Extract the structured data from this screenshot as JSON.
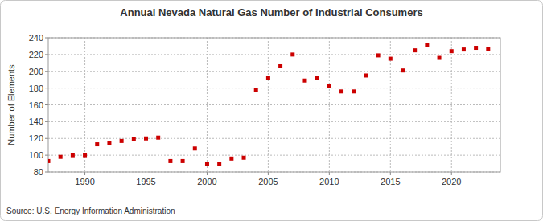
{
  "chart_data": {
    "type": "scatter",
    "title": "Annual Nevada Natural Gas Number of Industrial Consumers",
    "y_label": "Number of Elements",
    "source": "Source: U.S. Energy Information Administration",
    "x": [
      1987,
      1988,
      1989,
      1990,
      1991,
      1992,
      1993,
      1994,
      1995,
      1996,
      1997,
      1998,
      1999,
      2000,
      2001,
      2002,
      2003,
      2004,
      2005,
      2006,
      2007,
      2008,
      2009,
      2010,
      2011,
      2012,
      2013,
      2014,
      2015,
      2016,
      2017,
      2018,
      2019,
      2020,
      2021,
      2022,
      2023
    ],
    "values": [
      93,
      98,
      100,
      100,
      113,
      114,
      117,
      119,
      120,
      121,
      93,
      93,
      108,
      90,
      90,
      96,
      97,
      178,
      192,
      206,
      220,
      189,
      192,
      183,
      176,
      176,
      195,
      219,
      215,
      201,
      225,
      231,
      216,
      224,
      226,
      228,
      227
    ],
    "color": "#cc0000",
    "marker": "square",
    "xlim": [
      1987,
      2024
    ],
    "ylim": [
      80,
      240
    ],
    "xticks": [
      1990,
      1995,
      2000,
      2005,
      2010,
      2015,
      2020
    ],
    "yticks": [
      80,
      100,
      120,
      140,
      160,
      180,
      200,
      220,
      240
    ],
    "grid": true
  }
}
